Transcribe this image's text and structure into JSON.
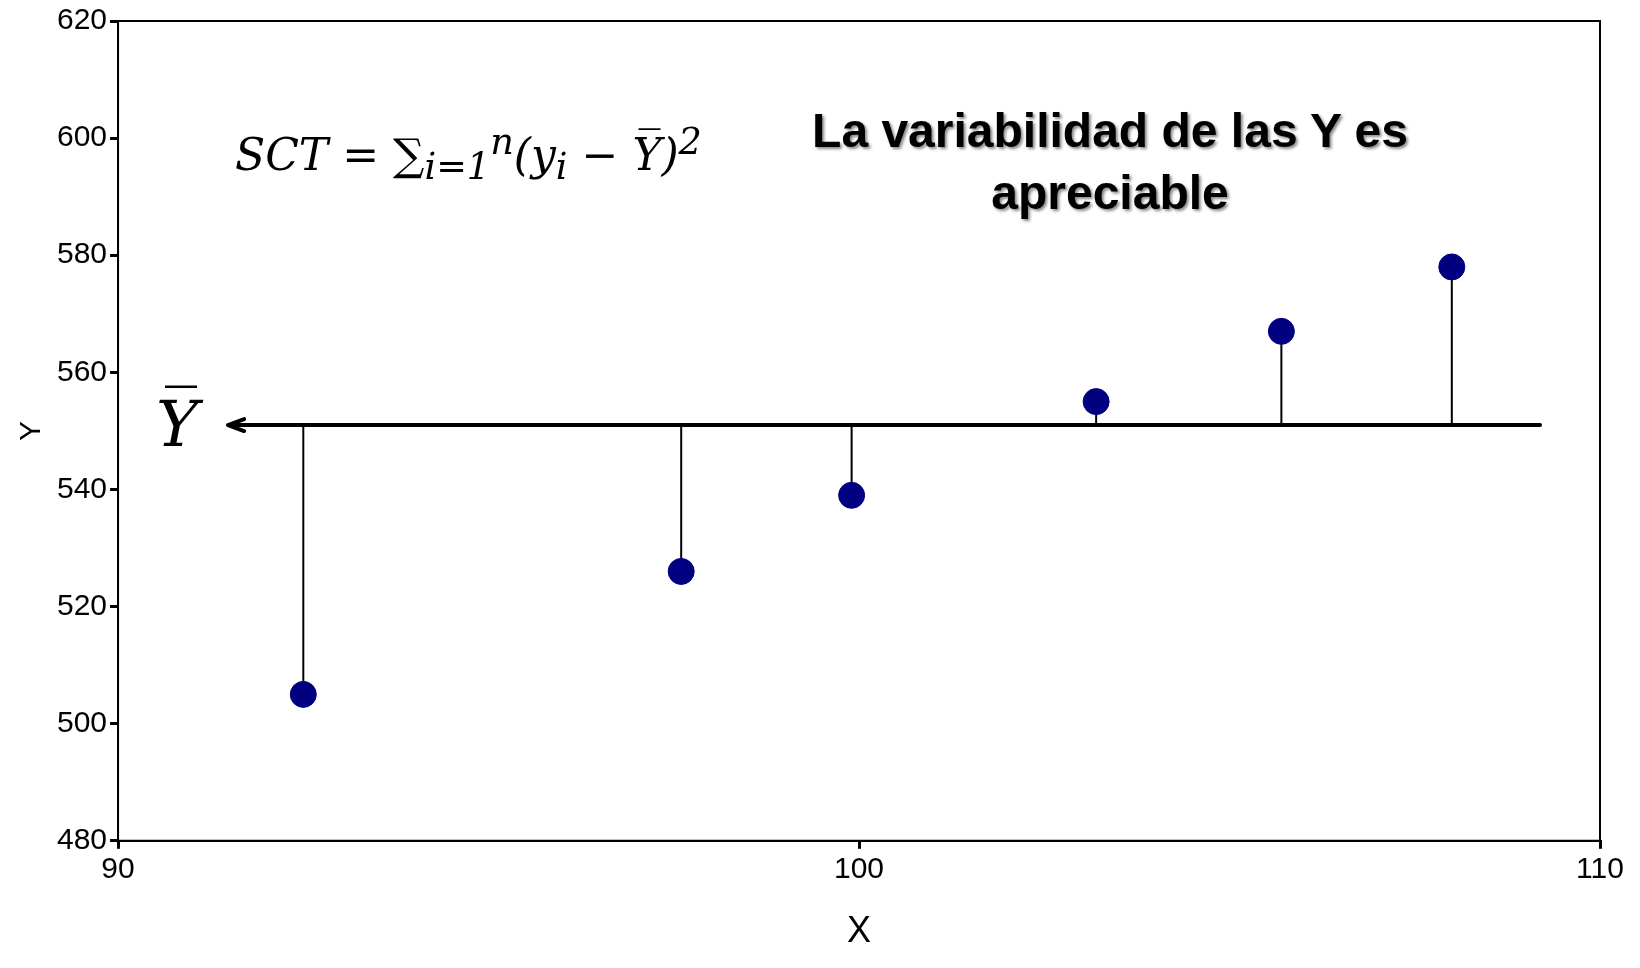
{
  "chart_data": {
    "type": "scatter",
    "xlabel": "X",
    "ylabel": "Y",
    "x": [
      92.5,
      97.6,
      99.9,
      103.2,
      105.7,
      108.0
    ],
    "series": [
      {
        "color": "#000080",
        "values": [
          505,
          526,
          539,
          555,
          567,
          578
        ],
        "errors": [
          [
            505,
            551
          ],
          [
            526,
            551
          ],
          [
            539,
            551
          ],
          [
            551,
            555
          ],
          [
            551,
            567
          ],
          [
            551,
            578
          ]
        ]
      }
    ],
    "xlim": [
      90,
      110
    ],
    "xticks": [
      90,
      100,
      110
    ],
    "ylim": [
      480,
      620
    ],
    "yticks": [
      480,
      500,
      520,
      540,
      560,
      580,
      600,
      620
    ],
    "ref_lines": [
      {
        "axis": "y",
        "value": 551,
        "label": "Y̅",
        "color": "#000000"
      }
    ],
    "annotations": [
      "SCT = ∑$_{i=1}$$^{n}$(y$_{i}$ − Y̅)$^{2}$",
      "La variabilidad de las Y es apreciable"
    ],
    "grid": false,
    "legend": false,
    "marker": "circle"
  }
}
